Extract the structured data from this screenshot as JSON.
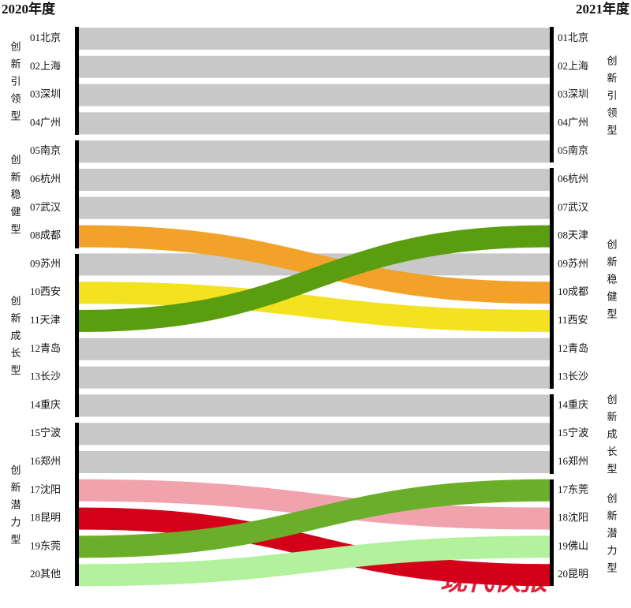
{
  "chart_data": {
    "type": "sankey",
    "title_left": "2020年度",
    "title_right": "2021年度",
    "left_groups": [
      {
        "label": "创新引领型",
        "first": 1,
        "last": 4
      },
      {
        "label": "创新稳健型",
        "first": 5,
        "last": 8
      },
      {
        "label": "创新成长型",
        "first": 9,
        "last": 14
      },
      {
        "label": "创新潜力型",
        "first": 15,
        "last": 20
      }
    ],
    "right_groups": [
      {
        "label": "创新引领型",
        "first": 1,
        "last": 5
      },
      {
        "label": "创新稳健型",
        "first": 6,
        "last": 13
      },
      {
        "label": "创新成长型",
        "first": 14,
        "last": 16
      },
      {
        "label": "创新潜力型",
        "first": 17,
        "last": 20
      }
    ],
    "left_labels": [
      "01北京",
      "02上海",
      "03深圳",
      "04广州",
      "05南京",
      "06杭州",
      "07武汉",
      "08成都",
      "09苏州",
      "10西安",
      "11天津",
      "12青岛",
      "13长沙",
      "14重庆",
      "15宁波",
      "16郑州",
      "17沈阳",
      "18昆明",
      "19东莞",
      "20其他"
    ],
    "right_labels": [
      "01北京",
      "02上海",
      "03深圳",
      "04广州",
      "05南京",
      "06杭州",
      "07武汉",
      "08天津",
      "09苏州",
      "10成都",
      "11西安",
      "12青岛",
      "13长沙",
      "14重庆",
      "15宁波",
      "16郑州",
      "17东莞",
      "18沈阳",
      "19佛山",
      "20昆明"
    ],
    "flows": [
      {
        "from": 1,
        "to": 1,
        "color": "#c8c8c8"
      },
      {
        "from": 2,
        "to": 2,
        "color": "#c8c8c8"
      },
      {
        "from": 3,
        "to": 3,
        "color": "#c8c8c8"
      },
      {
        "from": 4,
        "to": 4,
        "color": "#c8c8c8"
      },
      {
        "from": 5,
        "to": 5,
        "color": "#c8c8c8"
      },
      {
        "from": 6,
        "to": 6,
        "color": "#c8c8c8"
      },
      {
        "from": 7,
        "to": 7,
        "color": "#c8c8c8"
      },
      {
        "from": 9,
        "to": 9,
        "color": "#c8c8c8"
      },
      {
        "from": 12,
        "to": 12,
        "color": "#c8c8c8"
      },
      {
        "from": 13,
        "to": 13,
        "color": "#c8c8c8"
      },
      {
        "from": 14,
        "to": 14,
        "color": "#c8c8c8"
      },
      {
        "from": 15,
        "to": 15,
        "color": "#c8c8c8"
      },
      {
        "from": 16,
        "to": 16,
        "color": "#c8c8c8"
      },
      {
        "from": 10,
        "to": 11,
        "color": "#f2e21f"
      },
      {
        "from": 8,
        "to": 10,
        "color": "#f2a229"
      },
      {
        "from": 11,
        "to": 8,
        "color": "#5a9e10"
      },
      {
        "from": 18,
        "to": 20,
        "color": "#d4001a"
      },
      {
        "from": 17,
        "to": 18,
        "color": "#f0a3ad"
      },
      {
        "from": 20,
        "to": 19,
        "color": "#b2f29c"
      },
      {
        "from": 19,
        "to": 17,
        "color": "#6aae2a"
      }
    ]
  },
  "watermark": "现代快报"
}
